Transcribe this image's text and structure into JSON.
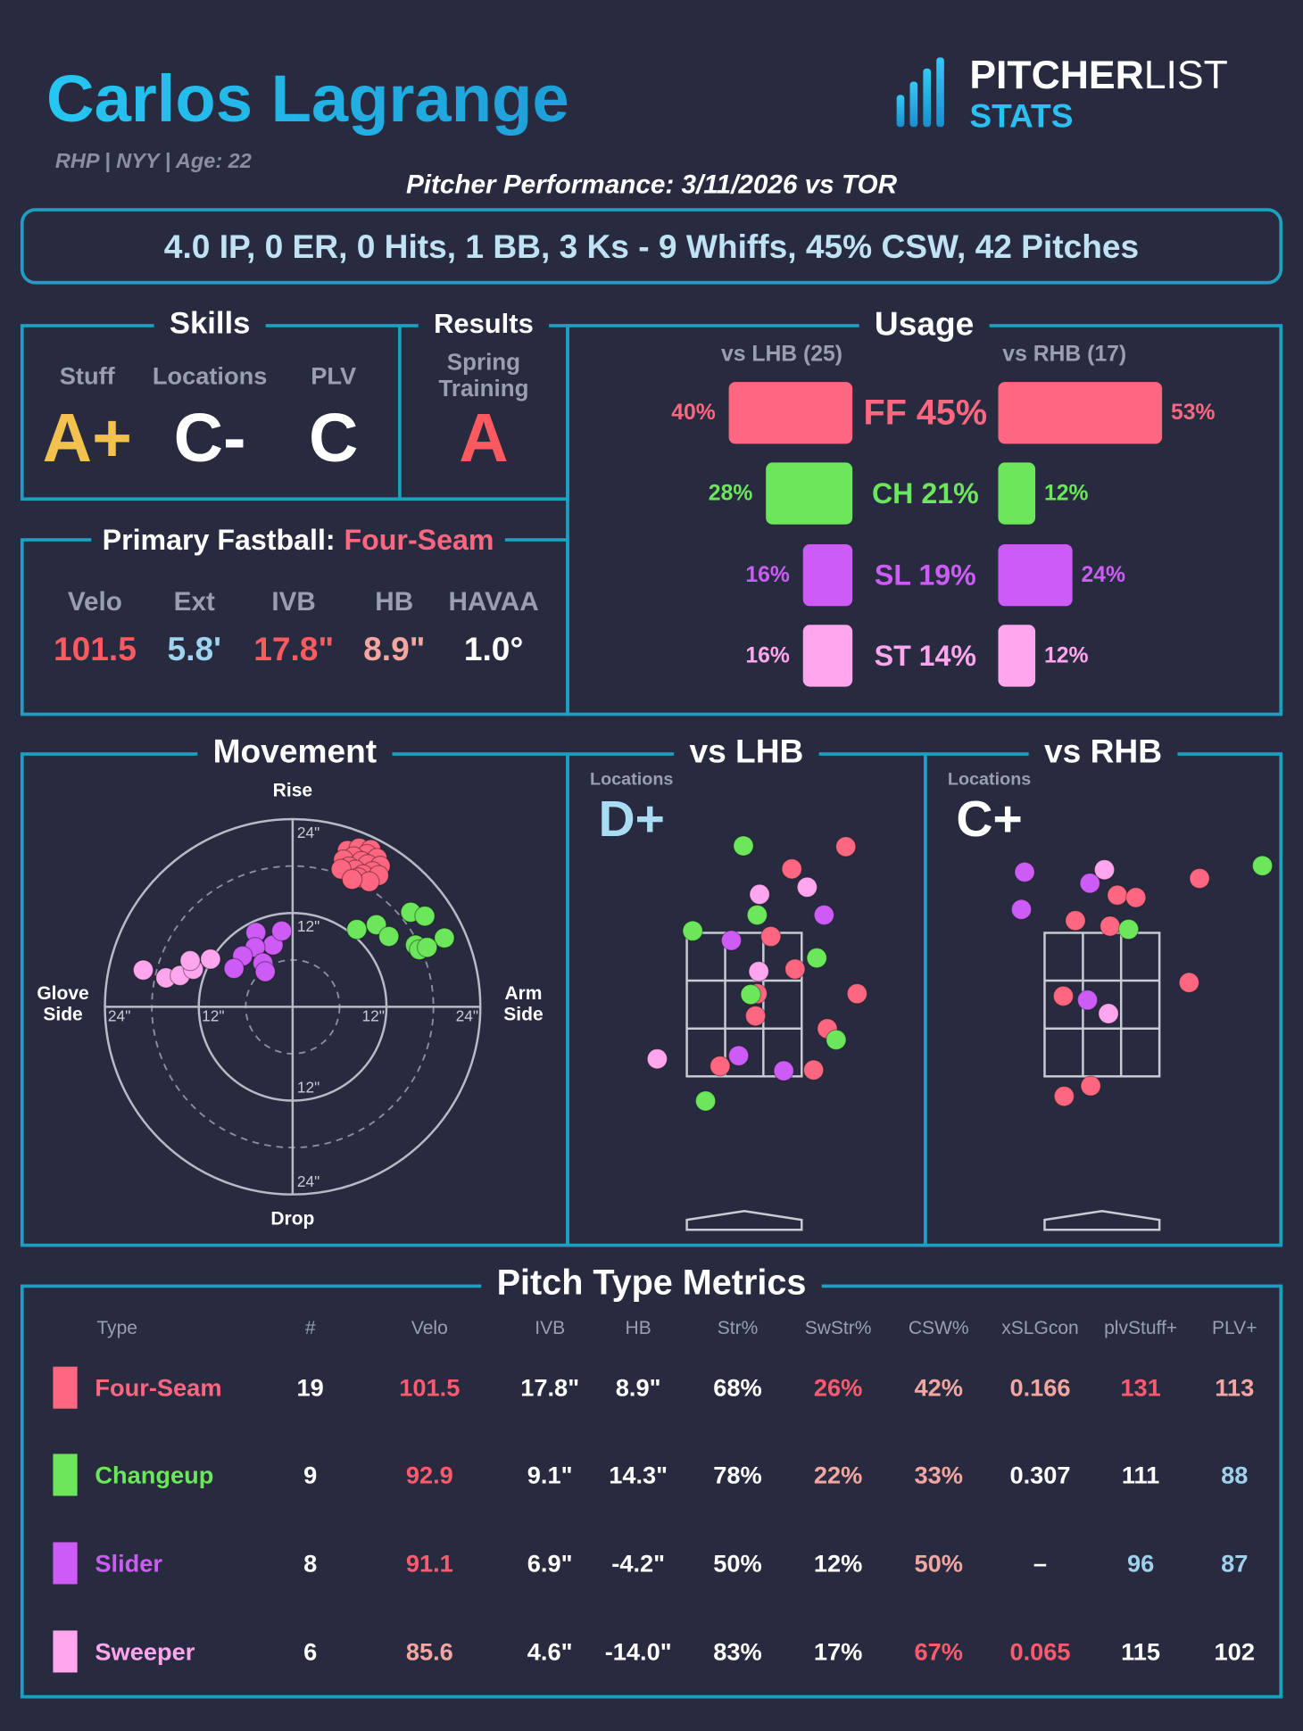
{
  "header": {
    "name": "Carlos Lagrange",
    "info": "RHP | NYY | Age: 22",
    "logo_bold": "PITCHER",
    "logo_light": "LIST",
    "logo_bottom": "STATS",
    "performance": "Pitcher Performance: 3/11/2026 vs TOR"
  },
  "summary": "4.0 IP, 0 ER, 0 Hits, 1 BB, 3 Ks - 9 Whiffs, 45% CSW, 42 Pitches",
  "skills": {
    "title": "Skills",
    "items": [
      {
        "label": "Stuff",
        "grade": "A+",
        "color": "#f2c14e"
      },
      {
        "label": "Locations",
        "grade": "C-",
        "color": "#ffffff"
      },
      {
        "label": "PLV",
        "grade": "C",
        "color": "#ffffff"
      }
    ]
  },
  "results": {
    "title": "Results",
    "label": [
      "Spring",
      "Training"
    ],
    "grade": "A",
    "color": "#ff5a5f"
  },
  "fastball": {
    "title": "Primary Fastball:",
    "pitch": "Four-Seam",
    "items": [
      {
        "label": "Velo",
        "value": "101.5",
        "color": "#ff5a5f"
      },
      {
        "label": "Ext",
        "value": "5.8'",
        "color": "#9fd3ef"
      },
      {
        "label": "IVB",
        "value": "17.8\"",
        "color": "#ff5a5f"
      },
      {
        "label": "HB",
        "value": "8.9\"",
        "color": "#f4a6a0"
      },
      {
        "label": "HAVAA",
        "value": "1.0°",
        "color": "#ffffff"
      }
    ]
  },
  "pitch_types": [
    {
      "name": "Four-Seam",
      "color": "#ff6680"
    },
    {
      "name": "Changeup",
      "color": "#6ce65a"
    },
    {
      "name": "Slider",
      "color": "#cc5cf5"
    },
    {
      "name": "Sweeper",
      "color": "#ffa6ee"
    }
  ],
  "usage": {
    "title": "Usage",
    "center_labels": [
      "FF 45%",
      "CH 21%",
      "SL 19%",
      "ST 14%"
    ],
    "lhb": {
      "title": "vs LHB (25)",
      "values": [
        40,
        28,
        16,
        16
      ],
      "value_labels": [
        "40%",
        "28%",
        "16%",
        "16%"
      ]
    },
    "rhb": {
      "title": "vs RHB (17)",
      "values": [
        53,
        12,
        24,
        12
      ],
      "value_labels": [
        "53%",
        "12%",
        "24%",
        "12%"
      ]
    }
  },
  "movement": {
    "title": "Movement",
    "top": "Rise",
    "bottom": "Drop",
    "left": [
      "Glove",
      "Side"
    ],
    "right": [
      "Arm",
      "Side"
    ],
    "ticks": [
      {
        "value": 12,
        "label": "12\""
      },
      {
        "value": 24,
        "label": "24\""
      }
    ],
    "series": [
      {
        "hb": [
          7.0,
          8.5,
          10.0,
          9.5,
          7.8,
          10.8,
          6.5,
          8.8,
          9.6,
          11.2,
          7.2,
          8.0,
          10.2,
          9.0,
          6.2,
          11.0,
          8.4,
          9.8,
          7.6
        ],
        "ivb": [
          20.0,
          20.3,
          20.1,
          19.5,
          19.2,
          19.0,
          18.8,
          18.6,
          18.2,
          18.0,
          17.9,
          17.5,
          17.3,
          16.9,
          17.6,
          16.8,
          16.5,
          16.0,
          16.3
        ]
      },
      {
        "hb": [
          8.2,
          10.7,
          12.3,
          15.1,
          16.9,
          15.7,
          16.2,
          19.4,
          17.2
        ],
        "ivb": [
          9.9,
          10.5,
          9.0,
          12.1,
          11.6,
          7.9,
          7.3,
          8.8,
          7.6
        ]
      },
      {
        "hb": [
          -4.7,
          -2.5,
          -1.4,
          -4.8,
          -6.4,
          -3.8,
          -7.5,
          -3.5
        ],
        "ivb": [
          9.5,
          7.9,
          9.7,
          7.6,
          6.5,
          5.6,
          4.9,
          4.5
        ]
      },
      {
        "hb": [
          -19.1,
          -16.2,
          -14.4,
          -12.7,
          -10.5,
          -13.1
        ],
        "ivb": [
          4.7,
          3.7,
          4.0,
          4.8,
          6.1,
          5.9
        ]
      }
    ]
  },
  "locations_lhb": {
    "title": "vs LHB",
    "label": "Locations",
    "grade": "D+",
    "grade_color": "#a9dcf2",
    "series": [
      {
        "plate_x": [
          0.59,
          1.26,
          0.33,
          0.63,
          0.16,
          0.14,
          1.03,
          1.4,
          0.86,
          -0.3
        ],
        "plate_z": [
          4.21,
          4.49,
          3.36,
          2.95,
          2.64,
          2.36,
          2.2,
          2.64,
          1.68,
          1.73
        ]
      },
      {
        "plate_x": [
          -0.01,
          0.16,
          -0.64,
          0.9,
          0.08,
          1.14,
          -0.48
        ],
        "plate_z": [
          4.5,
          3.63,
          3.43,
          3.09,
          2.63,
          2.06,
          1.29
        ]
      },
      {
        "plate_x": [
          0.99,
          -0.16,
          -0.07,
          0.49
        ],
        "plate_z": [
          3.63,
          3.31,
          1.86,
          1.67
        ]
      },
      {
        "plate_x": [
          0.19,
          0.78,
          0.18,
          -1.08
        ],
        "plate_z": [
          3.89,
          3.98,
          2.92,
          1.82
        ]
      }
    ]
  },
  "locations_rhb": {
    "title": "vs RHB",
    "label": "Locations",
    "grade": "C+",
    "grade_color": "#ffffff",
    "series": [
      {
        "plate_x": [
          0.19,
          0.42,
          -0.33,
          0.1,
          1.21,
          1.08,
          -0.48,
          -0.47,
          -0.14
        ],
        "plate_z": [
          3.88,
          3.85,
          3.56,
          3.49,
          4.09,
          2.78,
          2.61,
          1.35,
          1.48
        ]
      },
      {
        "plate_x": [
          0.33,
          1.99
        ],
        "plate_z": [
          3.45,
          4.25
        ]
      },
      {
        "plate_x": [
          -0.96,
          -0.15,
          -1.0,
          -0.18
        ],
        "plate_z": [
          4.17,
          4.03,
          3.7,
          2.56
        ]
      },
      {
        "plate_x": [
          0.03,
          0.08
        ],
        "plate_z": [
          4.2,
          2.39
        ]
      }
    ]
  },
  "metrics": {
    "title": "Pitch Type Metrics",
    "columns": [
      "Type",
      "#",
      "Velo",
      "IVB",
      "HB",
      "Str%",
      "SwStr%",
      "CSW%",
      "xSLGcon",
      "plvStuff+",
      "PLV+"
    ],
    "rows": [
      {
        "cells": [
          "19",
          "101.5",
          "17.8\"",
          "8.9\"",
          "68%",
          "26%",
          "42%",
          "0.166",
          "131",
          "113"
        ],
        "colors": [
          "#ffffff",
          "#ff5a6e",
          "#ffffff",
          "#ffffff",
          "#ffffff",
          "#ff5a6e",
          "#f4a6a0",
          "#f4a6a0",
          "#ff5a6e",
          "#f4a6a0"
        ]
      },
      {
        "cells": [
          "9",
          "92.9",
          "9.1\"",
          "14.3\"",
          "78%",
          "22%",
          "33%",
          "0.307",
          "111",
          "88"
        ],
        "colors": [
          "#ffffff",
          "#ff5a6e",
          "#ffffff",
          "#ffffff",
          "#ffffff",
          "#f4a6a0",
          "#f4a6a0",
          "#ffffff",
          "#ffffff",
          "#9fd0ec"
        ]
      },
      {
        "cells": [
          "8",
          "91.1",
          "6.9\"",
          "-4.2\"",
          "50%",
          "12%",
          "50%",
          "–",
          "96",
          "87"
        ],
        "colors": [
          "#ffffff",
          "#ff5a6e",
          "#ffffff",
          "#ffffff",
          "#ffffff",
          "#ffffff",
          "#f4a6a0",
          "#ffffff",
          "#9fd0ec",
          "#9fd0ec"
        ]
      },
      {
        "cells": [
          "6",
          "85.6",
          "4.6\"",
          "-14.0\"",
          "83%",
          "17%",
          "67%",
          "0.065",
          "115",
          "102"
        ],
        "colors": [
          "#ffffff",
          "#f4a6a0",
          "#ffffff",
          "#ffffff",
          "#ffffff",
          "#ffffff",
          "#ff5a6e",
          "#ff5a6e",
          "#ffffff",
          "#ffffff"
        ]
      }
    ]
  }
}
